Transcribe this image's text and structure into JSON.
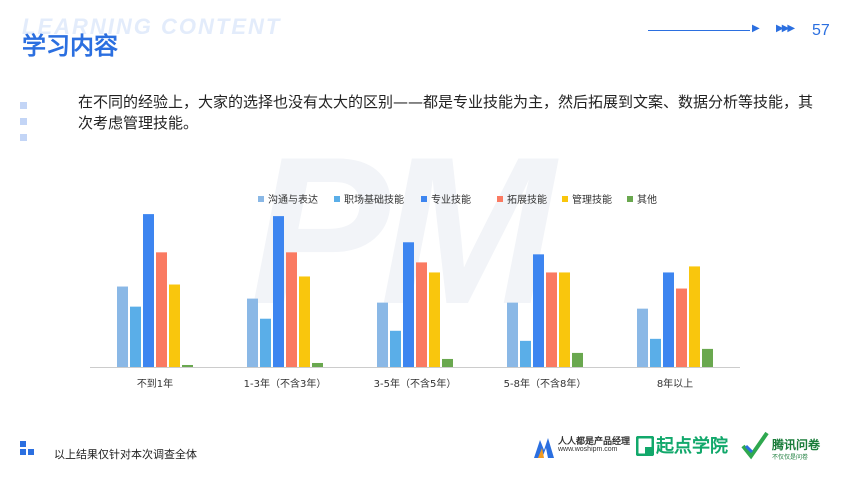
{
  "header": {
    "watermark": "LEARNING CONTENT",
    "title": "学习内容",
    "page_number": "57"
  },
  "description": "在不同的经验上，大家的选择也没有太大的区别——都是专业技能为主，然后拓展到文案、数据分析等技能，其次考虑管理技能。",
  "footer": {
    "note": "以上结果仅针对本次调查全体"
  },
  "logos": {
    "woshipm_name": "人人都是产品经理",
    "woshipm_url": "www.woshipm.com",
    "qidian_name": "起点学院",
    "tencent_name": "腾讯问卷",
    "tencent_slogan": "不仅仅是问卷"
  },
  "colors": {
    "accent": "#2b6fe0",
    "series": [
      "#8ab8e6",
      "#5aaee8",
      "#3d85f0",
      "#fa7a62",
      "#f9c60d",
      "#6aa84f"
    ]
  },
  "chart_data": {
    "type": "bar",
    "categories": [
      "不到1年",
      "1-3年（不含3年）",
      "3-5年（不含5年）",
      "5-8年（不含8年）",
      "8年以上"
    ],
    "series": [
      {
        "name": "沟通与表达",
        "values": [
          40,
          34,
          32,
          32,
          29
        ]
      },
      {
        "name": "职场基础技能",
        "values": [
          30,
          24,
          18,
          13,
          14
        ]
      },
      {
        "name": "专业技能",
        "values": [
          76,
          75,
          62,
          56,
          47
        ]
      },
      {
        "name": "拓展技能",
        "values": [
          57,
          57,
          52,
          47,
          39
        ]
      },
      {
        "name": "管理技能",
        "values": [
          41,
          45,
          47,
          47,
          50
        ]
      },
      {
        "name": "其他",
        "values": [
          1,
          2,
          4,
          7,
          9
        ]
      }
    ],
    "ylim": [
      0,
      85
    ],
    "legend_position": "top",
    "grid": false
  }
}
